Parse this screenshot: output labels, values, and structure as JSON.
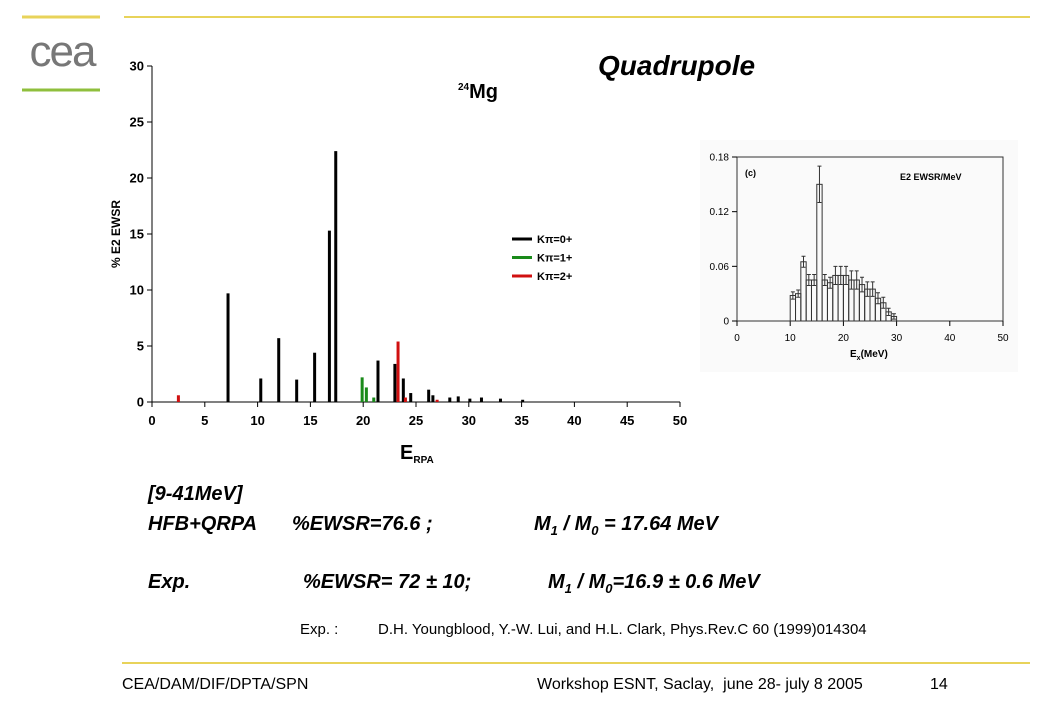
{
  "logo": "cea",
  "heading": "Quadrupole",
  "notes": {
    "range": "[9-41MeV]",
    "hfb": {
      "label": "HFB+QRPA",
      "ewsr": "%EWSR=76.6 ;",
      "ratio": [
        "M",
        "1",
        " / M",
        "0",
        " = 17.64 MeV"
      ]
    },
    "exp": {
      "label": "Exp.",
      "ewsr": "%EWSR= 72 ± 10;",
      "ratio": [
        "M",
        "1",
        " / M",
        "0",
        "=16.9 ± 0.6 MeV"
      ]
    }
  },
  "reference": {
    "label": "Exp. :",
    "text": "D.H. Youngblood, Y.-W. Lui, and H.L. Clark, Phys.Rev.C 60 (1999)014304"
  },
  "footer": {
    "left": "CEA/DAM/DIF/DPTA/SPN",
    "center": "Workshop ESNT, Saclay,  june 28- july 8 2005",
    "page": "14"
  },
  "chart_data": [
    {
      "type": "stem",
      "title": [
        "24",
        "Mg"
      ],
      "y_label": "% E2 EWSR",
      "x_label": [
        "E",
        "RPA"
      ],
      "xlim": [
        0,
        50
      ],
      "xticks": [
        0,
        5,
        10,
        15,
        20,
        25,
        30,
        35,
        40,
        45,
        50
      ],
      "ylim": [
        0,
        30
      ],
      "yticks": [
        0,
        5,
        10,
        15,
        20,
        25,
        30
      ],
      "series": [
        {
          "name": "Kπ=0+",
          "color": "#000000",
          "x": [
            7.2,
            10.3,
            12.0,
            13.7,
            15.4,
            16.8,
            17.4,
            21.4,
            23.0,
            23.8,
            24.5,
            26.2,
            26.6,
            28.2,
            29.0,
            30.1,
            31.2,
            33.0,
            35.1
          ],
          "values": [
            9.7,
            2.1,
            5.7,
            2.0,
            4.4,
            15.3,
            22.4,
            3.7,
            3.4,
            2.1,
            0.8,
            1.1,
            0.6,
            0.4,
            0.5,
            0.3,
            0.4,
            0.3,
            0.2
          ]
        },
        {
          "name": "Kπ=1+",
          "color": "#1a8a1a",
          "x": [
            19.9,
            20.3,
            21.0
          ],
          "values": [
            2.2,
            1.3,
            0.4
          ]
        },
        {
          "name": "Kπ=2+",
          "color": "#d01010",
          "x": [
            2.5,
            23.3,
            24.0,
            27.0
          ],
          "values": [
            0.6,
            5.4,
            0.4,
            0.2
          ]
        }
      ],
      "legend": "right"
    },
    {
      "type": "histogram",
      "annotations": [
        "(c)",
        "E2 EWSR/MeV"
      ],
      "x_label": [
        "E",
        "x",
        "(MeV)"
      ],
      "xlim": [
        0,
        50
      ],
      "xticks": [
        0,
        10,
        20,
        30,
        40,
        50
      ],
      "ylim": [
        0,
        0.18
      ],
      "yticks": [
        0,
        0.06,
        0.12,
        0.18
      ],
      "bins": [
        10,
        11,
        12,
        13,
        14,
        15,
        16,
        17,
        18,
        19,
        20,
        21,
        22,
        23,
        24,
        25,
        26,
        27,
        28,
        29,
        30
      ],
      "values": [
        0.028,
        0.03,
        0.065,
        0.045,
        0.045,
        0.15,
        0.045,
        0.042,
        0.05,
        0.05,
        0.05,
        0.045,
        0.045,
        0.04,
        0.035,
        0.035,
        0.025,
        0.02,
        0.01,
        0.005
      ],
      "errors": [
        0.004,
        0.004,
        0.006,
        0.006,
        0.006,
        0.02,
        0.006,
        0.006,
        0.01,
        0.01,
        0.01,
        0.01,
        0.01,
        0.008,
        0.008,
        0.008,
        0.006,
        0.006,
        0.004,
        0.003
      ],
      "color": "#333333",
      "frame": true
    }
  ]
}
